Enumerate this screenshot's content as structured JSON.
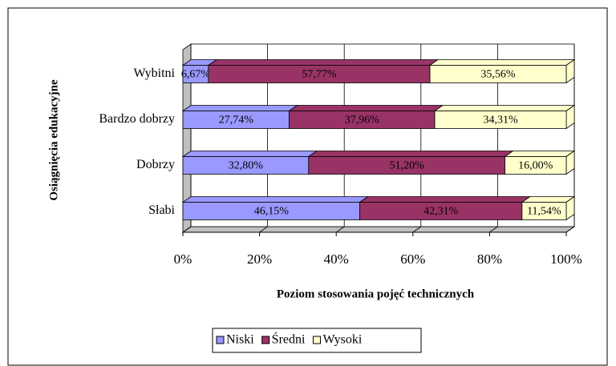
{
  "chart_data": {
    "type": "bar",
    "orientation": "horizontal",
    "stacked": true,
    "x_label": "Poziom stosowania pojęć technicznych",
    "y_label": "Osiągnięcia edukacyjne",
    "categories": [
      "Wybitni",
      "Bardzo dobrzy",
      "Dobrzy",
      "Słabi"
    ],
    "series": [
      {
        "name": "Niski",
        "color": "#9999ff",
        "values": [
          6.67,
          27.74,
          32.8,
          46.15
        ],
        "value_labels": [
          "6,67%",
          "27,74%",
          "32,80%",
          "46,15%"
        ]
      },
      {
        "name": "Średni",
        "color": "#993366",
        "values": [
          57.77,
          37.96,
          51.2,
          42.31
        ],
        "value_labels": [
          "57,77%",
          "37,96%",
          "51,20%",
          "42,31%"
        ]
      },
      {
        "name": "Wysoki",
        "color": "#ffffcc",
        "values": [
          35.56,
          34.31,
          16.0,
          11.54
        ],
        "value_labels": [
          "35,56%",
          "34,31%",
          "16,00%",
          "11,54%"
        ]
      }
    ],
    "xlim": [
      0,
      100
    ],
    "xticks": [
      {
        "value": 0,
        "label": "0%"
      },
      {
        "value": 20,
        "label": "20%"
      },
      {
        "value": 40,
        "label": "40%"
      },
      {
        "value": 60,
        "label": "60%"
      },
      {
        "value": 80,
        "label": "80%"
      },
      {
        "value": 100,
        "label": "100%"
      }
    ],
    "grid": true,
    "legend": "bottom"
  }
}
